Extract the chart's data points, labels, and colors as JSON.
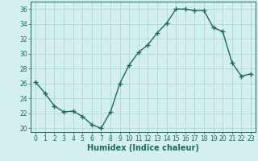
{
  "x": [
    0,
    1,
    2,
    3,
    4,
    5,
    6,
    7,
    8,
    9,
    10,
    11,
    12,
    13,
    14,
    15,
    16,
    17,
    18,
    19,
    20,
    21,
    22,
    23
  ],
  "y": [
    26.2,
    24.7,
    23.0,
    22.2,
    22.3,
    21.6,
    20.5,
    20.0,
    22.2,
    26.0,
    28.5,
    30.2,
    31.2,
    32.8,
    34.1,
    36.0,
    36.0,
    35.8,
    35.8,
    33.5,
    33.0,
    28.8,
    27.0,
    27.3
  ],
  "line_color": "#1a6b5a",
  "marker": "+",
  "marker_size": 4,
  "marker_linewidth": 1.0,
  "bg_color": "#d4f0ed",
  "grid_color": "#b0d8d4",
  "xlabel": "Humidex (Indice chaleur)",
  "ylim": [
    19.5,
    37
  ],
  "xlim": [
    -0.5,
    23.5
  ],
  "yticks": [
    20,
    22,
    24,
    26,
    28,
    30,
    32,
    34,
    36
  ],
  "xticks": [
    0,
    1,
    2,
    3,
    4,
    5,
    6,
    7,
    8,
    9,
    10,
    11,
    12,
    13,
    14,
    15,
    16,
    17,
    18,
    19,
    20,
    21,
    22,
    23
  ],
  "tick_color": "#1a6b5a",
  "xlabel_fontsize": 7,
  "tick_fontsize": 5.5,
  "linewidth": 1.0
}
